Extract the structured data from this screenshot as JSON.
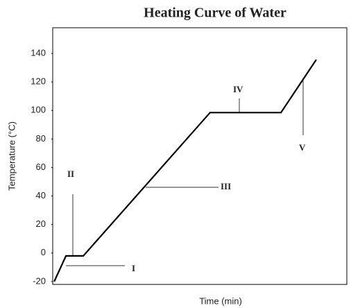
{
  "chart_data": {
    "type": "line",
    "title": "Heating Curve of Water",
    "x_label": "Time (min)",
    "y_label": "Temperature (°C)",
    "x": [
      0.5,
      4.5,
      10.4,
      53.5,
      77.6,
      89.6
    ],
    "series": [
      {
        "color": "#000000",
        "values": [
          -20,
          -2,
          -2,
          98.5,
          98.5,
          135.6
        ]
      }
    ],
    "xlim": [
      0,
      100
    ],
    "ylim": [
      -22,
      158
    ],
    "yticks": [
      -20,
      0,
      20,
      40,
      60,
      80,
      100,
      120,
      140
    ],
    "annotations": [
      "I",
      "II",
      "III",
      "IV",
      "V"
    ]
  }
}
